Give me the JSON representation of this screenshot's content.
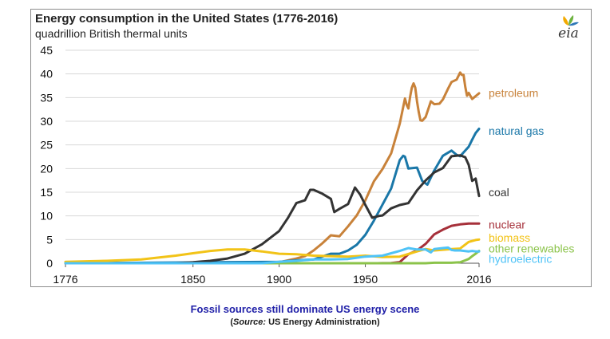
{
  "chart_data": {
    "type": "line",
    "title": "Energy consumption in the United States (1776-2016)",
    "subtitle": "quadrillion British thermal units",
    "ylim": [
      0,
      45
    ],
    "yticks": [
      "0",
      "5",
      "10",
      "15",
      "20",
      "25",
      "30",
      "35",
      "40",
      "45"
    ],
    "xlim": [
      1776,
      2016
    ],
    "xticks": [
      {
        "value": 1776,
        "label": "1776"
      },
      {
        "value": 1850,
        "label": "1850"
      },
      {
        "value": 1900,
        "label": "1900"
      },
      {
        "value": 1950,
        "label": "1950"
      },
      {
        "value": 2016,
        "label": "2016"
      }
    ],
    "series": [
      {
        "name": "petroleum",
        "color": "#c8823a",
        "x": [
          1776,
          1900,
          1910,
          1915,
          1920,
          1925,
          1930,
          1935,
          1940,
          1945,
          1950,
          1955,
          1960,
          1965,
          1970,
          1972,
          1973,
          1974,
          1975,
          1976,
          1977,
          1978,
          1979,
          1980,
          1981,
          1982,
          1983,
          1985,
          1988,
          1990,
          1993,
          1995,
          1998,
          2000,
          2003,
          2005,
          2006,
          2007,
          2008,
          2009,
          2010,
          2012,
          2014,
          2016
        ],
        "y": [
          0,
          0.2,
          1.0,
          1.5,
          2.7,
          4.2,
          5.9,
          5.7,
          7.8,
          10.1,
          13.3,
          17.3,
          19.9,
          23.2,
          29.5,
          33.0,
          34.8,
          33.5,
          32.7,
          35.2,
          37.1,
          38.0,
          37.1,
          34.2,
          31.9,
          30.2,
          30.1,
          30.9,
          34.2,
          33.6,
          33.7,
          34.6,
          36.9,
          38.3,
          38.8,
          40.3,
          39.8,
          39.8,
          37.3,
          35.4,
          36.0,
          34.7,
          35.3,
          35.9
        ]
      },
      {
        "name": "natural gas",
        "color": "#1a77a8",
        "x": [
          1776,
          1900,
          1910,
          1920,
          1930,
          1935,
          1940,
          1945,
          1950,
          1955,
          1960,
          1965,
          1970,
          1972,
          1973,
          1975,
          1980,
          1983,
          1986,
          1990,
          1995,
          2000,
          2003,
          2005,
          2008,
          2010,
          2012,
          2014,
          2016
        ],
        "y": [
          0,
          0.3,
          0.6,
          0.8,
          2.0,
          2.0,
          2.7,
          3.9,
          6.0,
          9.0,
          12.4,
          15.8,
          21.8,
          22.7,
          22.5,
          20.0,
          20.2,
          17.4,
          16.6,
          19.6,
          22.7,
          23.8,
          22.9,
          22.6,
          23.8,
          24.6,
          26.1,
          27.5,
          28.4
        ]
      },
      {
        "name": "coal",
        "color": "#333333",
        "x": [
          1776,
          1840,
          1850,
          1860,
          1870,
          1880,
          1890,
          1900,
          1905,
          1910,
          1915,
          1918,
          1920,
          1925,
          1930,
          1932,
          1935,
          1940,
          1944,
          1947,
          1950,
          1954,
          1958,
          1960,
          1965,
          1970,
          1975,
          1980,
          1985,
          1990,
          1995,
          2000,
          2005,
          2008,
          2010,
          2012,
          2014,
          2016
        ],
        "y": [
          0,
          0,
          0.2,
          0.5,
          1.0,
          2.0,
          4.0,
          6.8,
          9.5,
          12.7,
          13.3,
          15.5,
          15.5,
          14.7,
          13.6,
          10.8,
          11.5,
          12.5,
          16.0,
          14.5,
          12.3,
          9.6,
          10.0,
          10.1,
          11.6,
          12.3,
          12.7,
          15.4,
          17.5,
          19.2,
          20.1,
          22.6,
          22.8,
          22.4,
          20.8,
          17.4,
          17.9,
          14.2
        ]
      },
      {
        "name": "nuclear",
        "color": "#a6303a",
        "x": [
          1776,
          1957,
          1960,
          1965,
          1970,
          1975,
          1980,
          1985,
          1990,
          1995,
          2000,
          2005,
          2010,
          2016
        ],
        "y": [
          0,
          0,
          0.01,
          0.04,
          0.24,
          1.9,
          2.7,
          4.1,
          6.1,
          7.1,
          7.9,
          8.2,
          8.4,
          8.4
        ]
      },
      {
        "name": "biomass",
        "color": "#f2c317",
        "x": [
          1776,
          1800,
          1820,
          1840,
          1850,
          1860,
          1870,
          1880,
          1890,
          1900,
          1910,
          1920,
          1930,
          1940,
          1950,
          1960,
          1970,
          1980,
          1985,
          1990,
          2000,
          2005,
          2010,
          2014,
          2016
        ],
        "y": [
          0.3,
          0.5,
          0.8,
          1.6,
          2.1,
          2.6,
          2.9,
          2.9,
          2.5,
          2.0,
          1.9,
          1.6,
          1.5,
          1.4,
          1.6,
          1.3,
          1.4,
          2.5,
          3.0,
          2.7,
          3.0,
          3.1,
          4.5,
          4.9,
          5.0
        ]
      },
      {
        "name": "other renewables",
        "color": "#8bc34a",
        "x": [
          1776,
          1985,
          1990,
          1995,
          2000,
          2005,
          2008,
          2010,
          2012,
          2014,
          2016
        ],
        "y": [
          0,
          0,
          0.1,
          0.1,
          0.1,
          0.2,
          0.6,
          0.9,
          1.5,
          2.0,
          2.6
        ]
      },
      {
        "name": "hydroelectric",
        "color": "#4fc3f7",
        "x": [
          1776,
          1890,
          1900,
          1910,
          1920,
          1930,
          1940,
          1950,
          1960,
          1965,
          1970,
          1975,
          1980,
          1985,
          1988,
          1990,
          1995,
          1998,
          2000,
          2002,
          2005,
          2010,
          2012,
          2014,
          2016
        ],
        "y": [
          0,
          0,
          0.3,
          0.5,
          0.8,
          0.8,
          0.9,
          1.4,
          1.6,
          2.1,
          2.6,
          3.2,
          2.9,
          2.9,
          2.3,
          3.0,
          3.2,
          3.3,
          2.8,
          2.7,
          2.7,
          2.5,
          2.6,
          2.5,
          2.5
        ]
      }
    ],
    "labels": [
      {
        "name": "petroleum",
        "text": "petroleum",
        "color": "#c8823a",
        "value": 36.0
      },
      {
        "name": "natural gas",
        "text": "natural gas",
        "color": "#1a77a8",
        "value": 28.0
      },
      {
        "name": "coal",
        "text": "coal",
        "color": "#333333",
        "value": 15.0
      },
      {
        "name": "nuclear",
        "text": "nuclear",
        "color": "#a6303a",
        "value": 8.2
      },
      {
        "name": "biomass",
        "text": "biomass",
        "color": "#f2c317",
        "value": 5.4
      },
      {
        "name": "other renewables",
        "text": "other renewables",
        "color": "#8bc34a",
        "value": 3.1
      },
      {
        "name": "hydroelectric",
        "text": "hydroelectric",
        "color": "#4fc3f7",
        "value": 0.9
      }
    ]
  },
  "logo": {
    "text": "eia",
    "colors": [
      "#f2a900",
      "#6db33f",
      "#2f78b7"
    ]
  },
  "caption": {
    "title": "Fossil sources still dominate US energy scene",
    "source_open": "(",
    "source_label": "Source:",
    "source_rest": " US Energy Administration)"
  }
}
